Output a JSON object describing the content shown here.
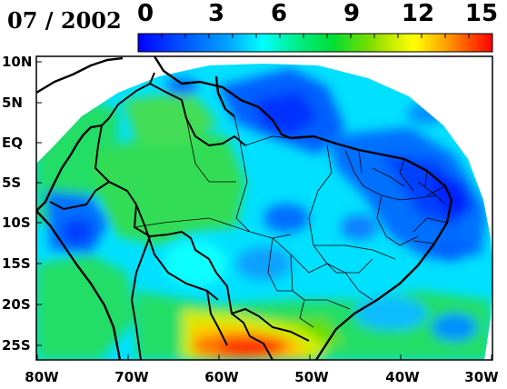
{
  "title": "07 / 2002",
  "colorbar": {
    "ticks": [
      "0",
      "3",
      "6",
      "9",
      "12",
      "15"
    ],
    "range": [
      0,
      15
    ],
    "colors": [
      "#0000ff",
      "#0050ff",
      "#00a0ff",
      "#00ffff",
      "#00e890",
      "#00dd33",
      "#66dd00",
      "#ccee00",
      "#ffff00",
      "#ffaa00",
      "#ff5500",
      "#ff0000"
    ]
  },
  "map": {
    "lat_labels": [
      "10N",
      "5N",
      "EQ",
      "5S",
      "10S",
      "15S",
      "20S",
      "25S"
    ],
    "lon_labels": [
      "80W",
      "70W",
      "60W",
      "50W",
      "40W",
      "30W"
    ],
    "extent": {
      "lon": [
        -80,
        -30
      ],
      "lat": [
        -27,
        10
      ]
    }
  }
}
